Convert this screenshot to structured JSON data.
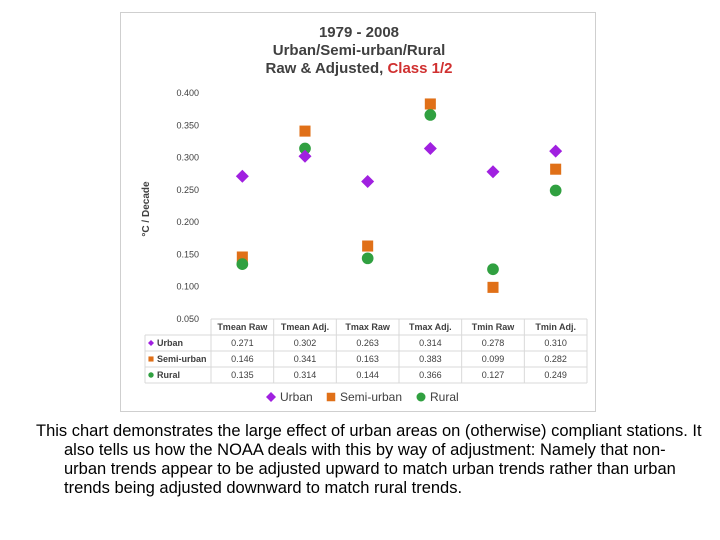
{
  "chart_data": {
    "type": "scatter",
    "title": [
      "1979 - 2008",
      "Urban/Semi-urban/Rural"
    ],
    "title_line3_prefix": "Raw & Adjusted, ",
    "title_line3_accent": "Class 1/2",
    "ylabel": "°C / Decade",
    "xlabel": "",
    "ylim": [
      0.05,
      0.4
    ],
    "yticks": [
      "0.400",
      "0.350",
      "0.300",
      "0.250",
      "0.200",
      "0.150",
      "0.100",
      "0.050"
    ],
    "ytick_values": [
      0.4,
      0.35,
      0.3,
      0.25,
      0.2,
      0.15,
      0.1,
      0.05
    ],
    "grid": false,
    "legend_position": "bottom",
    "categories": [
      "Tmean Raw",
      "Tmean Adj.",
      "Tmax Raw",
      "Tmax Adj.",
      "Tmin Raw",
      "Tmin Adj."
    ],
    "series": [
      {
        "name": "Urban",
        "marker": "diamond",
        "color": "#a020e0",
        "values": [
          0.271,
          0.302,
          0.263,
          0.314,
          0.278,
          0.31
        ],
        "labels": [
          "0.271",
          "0.302",
          "0.263",
          "0.314",
          "0.278",
          "0.310"
        ]
      },
      {
        "name": "Semi-urban",
        "marker": "square",
        "color": "#e07018",
        "values": [
          0.146,
          0.341,
          0.163,
          0.383,
          0.099,
          0.282
        ],
        "labels": [
          "0.146",
          "0.341",
          "0.163",
          "0.383",
          "0.099",
          "0.282"
        ]
      },
      {
        "name": "Rural",
        "marker": "circle",
        "color": "#30a040",
        "values": [
          0.135,
          0.314,
          0.144,
          0.366,
          0.127,
          0.249
        ],
        "labels": [
          "0.135",
          "0.314",
          "0.144",
          "0.366",
          "0.127",
          "0.249"
        ]
      }
    ]
  },
  "caption": "This chart demonstrates the large effect of urban areas on (otherwise) compliant stations. It also tells us how the NOAA deals with this by way of adjustment: Namely that non-urban trends appear to be adjusted upward to match urban trends rather than urban trends being adjusted downward to match rural trends."
}
